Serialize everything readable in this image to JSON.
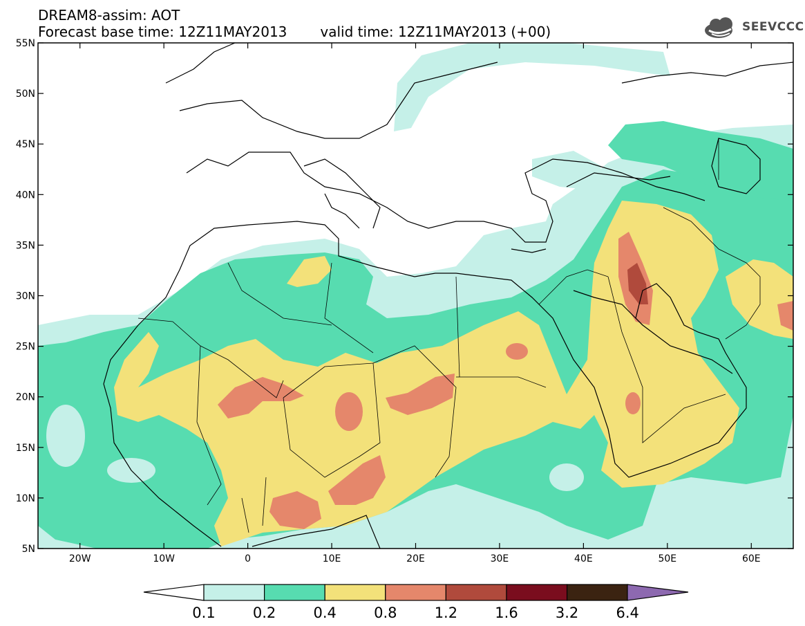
{
  "header": {
    "line1": "DREAM8-assim: AOT",
    "base_time": "Forecast base time: 12Z11MAY2013",
    "valid_time": "valid time: 12Z11MAY2013 (+00)",
    "logo_text": "SEEVCCC"
  },
  "axes": {
    "lat_labels": [
      "55N",
      "50N",
      "45N",
      "40N",
      "35N",
      "30N",
      "25N",
      "20N",
      "15N",
      "10N",
      "5N"
    ],
    "lon_labels": [
      "20W",
      "10W",
      "0",
      "10E",
      "20E",
      "30E",
      "40E",
      "50E",
      "60E"
    ],
    "lat_range": [
      5,
      55
    ],
    "lon_range": [
      -25,
      65
    ]
  },
  "colorbar": {
    "labels": [
      "0.1",
      "0.2",
      "0.4",
      "0.8",
      "1.2",
      "1.6",
      "3.2",
      "6.4"
    ],
    "colors": [
      "#c5f0e8",
      "#57dcb0",
      "#f3e17a",
      "#e5876b",
      "#b04a3c",
      "#7a0d1e",
      "#3b2311",
      "#8d69b0"
    ]
  }
}
